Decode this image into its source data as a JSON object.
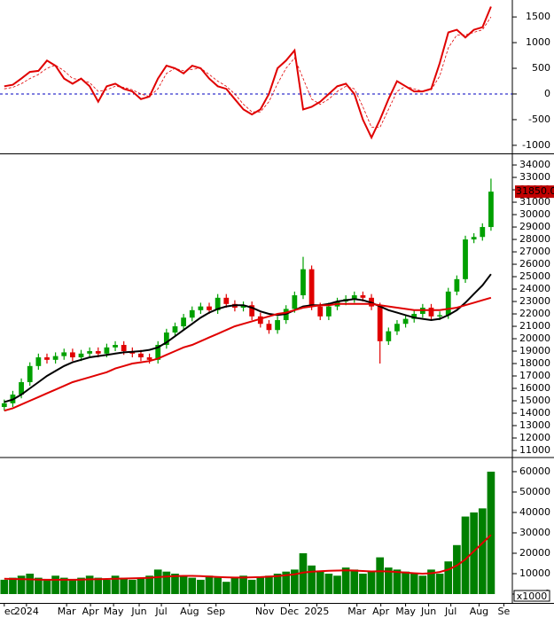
{
  "chart_data": [
    {
      "type": "line",
      "xlim": [
        0,
        60
      ],
      "ylim": [
        -1140,
        1830
      ],
      "yticks": [
        -1000,
        -500,
        0,
        500,
        1000,
        1500
      ],
      "zero_line": true,
      "series": [
        {
          "color": "#e00000",
          "values": [
            150,
            180,
            300,
            430,
            450,
            650,
            550,
            300,
            200,
            300,
            150,
            -150,
            150,
            200,
            100,
            50,
            -100,
            -50,
            300,
            550,
            500,
            400,
            550,
            500,
            300,
            150,
            100,
            -100,
            -300,
            -400,
            -300,
            0,
            500,
            650,
            850,
            -300,
            -250,
            -150,
            0,
            150,
            200,
            0,
            -500,
            -850,
            -500,
            -100,
            250,
            150,
            50,
            50,
            100,
            600,
            1200,
            1250,
            1100,
            1250,
            1300,
            1700
          ]
        },
        {
          "color": "#e00000",
          "dashed": true,
          "values": [
            100,
            130,
            200,
            300,
            380,
            500,
            560,
            450,
            300,
            280,
            220,
            50,
            80,
            150,
            130,
            80,
            0,
            -50,
            100,
            400,
            500,
            450,
            480,
            500,
            380,
            250,
            150,
            0,
            -200,
            -350,
            -350,
            -150,
            200,
            500,
            700,
            300,
            -100,
            -200,
            -100,
            50,
            150,
            100,
            -250,
            -650,
            -650,
            -300,
            50,
            150,
            100,
            50,
            80,
            350,
            900,
            1150,
            1150,
            1200,
            1250,
            1500
          ]
        }
      ]
    },
    {
      "type": "candlestick",
      "xlim": [
        0,
        60
      ],
      "ylim": [
        10500,
        34790
      ],
      "yticks": [
        11000,
        12000,
        13000,
        14000,
        15000,
        16000,
        17000,
        18000,
        19000,
        20000,
        21000,
        22000,
        23000,
        24000,
        25000,
        26000,
        27000,
        28000,
        29000,
        30000,
        31000,
        32000,
        33000,
        34000
      ],
      "up_color": "#00a000",
      "down_color": "#e00000",
      "open": [
        14500,
        14800,
        15500,
        16500,
        17800,
        18500,
        18300,
        18600,
        18900,
        18500,
        18800,
        19000,
        18800,
        19300,
        19500,
        19000,
        18800,
        18500,
        18300,
        19500,
        20500,
        21000,
        21700,
        22300,
        22600,
        22300,
        23300,
        22800,
        22500,
        22700,
        21800,
        21200,
        20700,
        21500,
        22400,
        23500,
        25600,
        22600,
        21800,
        22600,
        23000,
        23200,
        23500,
        23300,
        22600,
        19800,
        20600,
        21200,
        21600,
        22000,
        22500,
        21800,
        21900,
        23800,
        24800,
        28000,
        28200,
        29000
      ],
      "high": [
        15100,
        15800,
        16800,
        18100,
        18800,
        18800,
        18900,
        19200,
        19200,
        19100,
        19300,
        19300,
        19600,
        19800,
        19800,
        19300,
        19100,
        18800,
        19800,
        20800,
        21300,
        22000,
        22600,
        22900,
        22900,
        23600,
        23600,
        23100,
        23000,
        23000,
        22100,
        21500,
        21800,
        22700,
        23800,
        26600,
        25900,
        22900,
        22900,
        23300,
        23500,
        23800,
        23800,
        23600,
        22900,
        20900,
        21500,
        21900,
        22300,
        22800,
        22800,
        22200,
        24100,
        25100,
        28300,
        28500,
        29300,
        32900
      ],
      "low": [
        14200,
        14500,
        15200,
        16200,
        17500,
        18000,
        18000,
        18300,
        18200,
        18200,
        18500,
        18500,
        18500,
        19000,
        18700,
        18500,
        18200,
        18000,
        18000,
        19200,
        20200,
        20700,
        21400,
        22000,
        22000,
        22000,
        22500,
        22200,
        22200,
        21500,
        20900,
        20400,
        20400,
        21200,
        22100,
        23200,
        22300,
        21500,
        21500,
        22300,
        22700,
        22900,
        23000,
        22300,
        18000,
        19500,
        20300,
        20900,
        21300,
        21700,
        21500,
        21500,
        21600,
        23500,
        24500,
        27700,
        27900,
        28700
      ],
      "close": [
        14800,
        15500,
        16500,
        17800,
        18500,
        18300,
        18600,
        18900,
        18500,
        18800,
        19000,
        18800,
        19300,
        19500,
        19000,
        18800,
        18500,
        18300,
        19500,
        20500,
        21000,
        21700,
        22300,
        22600,
        22300,
        23300,
        22800,
        22500,
        22700,
        21800,
        21200,
        20700,
        21500,
        22400,
        23500,
        25600,
        22600,
        21800,
        22600,
        23000,
        23200,
        23500,
        23300,
        22600,
        19800,
        20600,
        21200,
        21600,
        22000,
        22500,
        21800,
        21900,
        23800,
        24800,
        28000,
        28200,
        29000,
        31850
      ],
      "series": [
        {
          "color": "#000000",
          "values": [
            14900,
            15100,
            15500,
            16000,
            16500,
            17000,
            17400,
            17800,
            18100,
            18300,
            18500,
            18600,
            18700,
            18800,
            18900,
            18950,
            19000,
            19100,
            19300,
            19700,
            20200,
            20700,
            21200,
            21700,
            22100,
            22400,
            22600,
            22700,
            22700,
            22500,
            22200,
            22000,
            21900,
            22000,
            22300,
            22600,
            22700,
            22700,
            22800,
            23000,
            23100,
            23200,
            23100,
            22900,
            22600,
            22300,
            22100,
            21900,
            21700,
            21600,
            21500,
            21600,
            21900,
            22300,
            22900,
            23600,
            24300,
            25200
          ]
        },
        {
          "color": "#e00000",
          "values": [
            14200,
            14400,
            14700,
            15000,
            15300,
            15600,
            15900,
            16200,
            16500,
            16700,
            16900,
            17100,
            17300,
            17600,
            17800,
            18000,
            18100,
            18200,
            18400,
            18700,
            19000,
            19300,
            19500,
            19800,
            20100,
            20400,
            20700,
            21000,
            21200,
            21400,
            21600,
            21800,
            22000,
            22100,
            22300,
            22500,
            22600,
            22700,
            22700,
            22800,
            22800,
            22800,
            22800,
            22800,
            22700,
            22600,
            22500,
            22400,
            22300,
            22300,
            22300,
            22300,
            22400,
            22500,
            22700,
            22900,
            23100,
            23300
          ]
        }
      ],
      "last_price": {
        "value": 31850,
        "label": "31850.00"
      }
    },
    {
      "type": "bar",
      "xlim": [
        0,
        60
      ],
      "ylim": [
        -4350,
        66500
      ],
      "yticks": [
        0,
        10000,
        20000,
        30000,
        40000,
        50000,
        60000
      ],
      "unit": "x1000",
      "color": "#008000",
      "values": [
        7000,
        8000,
        9000,
        10000,
        8000,
        7000,
        9000,
        8000,
        7000,
        8000,
        9000,
        8000,
        7000,
        9000,
        8000,
        7000,
        8000,
        9000,
        12000,
        11000,
        10000,
        9000,
        8000,
        7000,
        9000,
        8000,
        6000,
        8000,
        9000,
        7000,
        8000,
        9000,
        10000,
        11000,
        12000,
        20000,
        14000,
        11000,
        10000,
        9000,
        13000,
        12000,
        10000,
        11000,
        18000,
        13000,
        12000,
        11000,
        10000,
        9000,
        12000,
        10000,
        16000,
        24000,
        38000,
        40000,
        42000,
        60000
      ],
      "series": [
        {
          "color": "#e00000",
          "values": [
            7500,
            7400,
            7300,
            7200,
            7100,
            7000,
            7000,
            7000,
            7000,
            7100,
            7200,
            7300,
            7400,
            7500,
            7600,
            7700,
            7800,
            8000,
            8300,
            8600,
            8800,
            8900,
            8900,
            8800,
            8600,
            8400,
            8200,
            8100,
            8100,
            8200,
            8300,
            8500,
            8800,
            9200,
            9700,
            10500,
            11000,
            11200,
            11400,
            11500,
            11600,
            11500,
            11300,
            11100,
            11200,
            11100,
            10800,
            10500,
            10200,
            10000,
            10200,
            10800,
            12000,
            14000,
            17000,
            21000,
            25000,
            29000
          ]
        }
      ],
      "xticks": [
        {
          "value": 0.5,
          "label": "ec"
        },
        {
          "value": 3.1,
          "label": "2024"
        },
        {
          "value": 7.8,
          "label": "Mar"
        },
        {
          "value": 10.6,
          "label": "Apr"
        },
        {
          "value": 13.3,
          "label": "May"
        },
        {
          "value": 16.3,
          "label": "Jun"
        },
        {
          "value": 18.9,
          "label": "Jul"
        },
        {
          "value": 22.2,
          "label": "Aug"
        },
        {
          "value": 25.3,
          "label": "Sep"
        },
        {
          "value": 31.0,
          "label": "Nov"
        },
        {
          "value": 33.9,
          "label": "Dec"
        },
        {
          "value": 37.1,
          "label": "2025"
        },
        {
          "value": 41.8,
          "label": "Mar"
        },
        {
          "value": 44.6,
          "label": "Apr"
        },
        {
          "value": 47.5,
          "label": "May"
        },
        {
          "value": 50.2,
          "label": "Jun"
        },
        {
          "value": 52.8,
          "label": "Jul"
        },
        {
          "value": 56.1,
          "label": "Aug"
        },
        {
          "value": 59.0,
          "label": "Se"
        }
      ]
    }
  ]
}
